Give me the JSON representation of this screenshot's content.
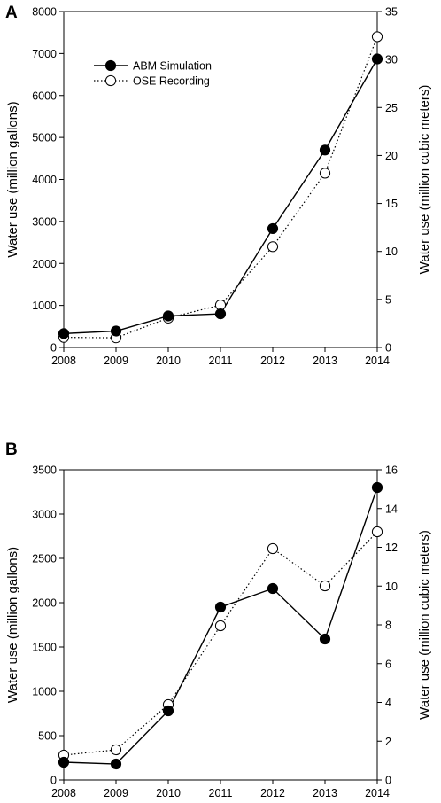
{
  "chart_data": [
    {
      "type": "line",
      "panel_label": "A",
      "x": [
        2008,
        2009,
        2010,
        2011,
        2012,
        2013,
        2014
      ],
      "xlim": [
        2008,
        2014
      ],
      "x_ticks": [
        "2008",
        "2009",
        "2010",
        "2011",
        "2012",
        "2013",
        "2014"
      ],
      "ylabel": "Water use (million gallons)",
      "ylim": [
        0,
        8000
      ],
      "y_ticks": [
        "0",
        "1000",
        "2000",
        "3000",
        "4000",
        "5000",
        "6000",
        "7000",
        "8000"
      ],
      "y2label": "Water use (million cubic meters)",
      "y2lim": [
        0,
        35
      ],
      "y2_ticks": [
        "0",
        "5",
        "10",
        "15",
        "20",
        "25",
        "30",
        "35"
      ],
      "legend": "upper-left",
      "grid": false,
      "series": [
        {
          "name": "ABM Simulation",
          "marker": "filled-circle",
          "line": "solid",
          "color": "#000000",
          "values": [
            330,
            390,
            750,
            800,
            2830,
            4700,
            6870
          ]
        },
        {
          "name": "OSE Recording",
          "marker": "open-circle",
          "line": "dotted",
          "color": "#000000",
          "values": [
            240,
            230,
            700,
            1010,
            2400,
            4150,
            7400
          ]
        }
      ]
    },
    {
      "type": "line",
      "panel_label": "B",
      "x": [
        2008,
        2009,
        2010,
        2011,
        2012,
        2013,
        2014
      ],
      "xlim": [
        2008,
        2014
      ],
      "x_ticks": [
        "2008",
        "2009",
        "2010",
        "2011",
        "2012",
        "2013",
        "2014"
      ],
      "ylabel": "Water use (million gallons)",
      "ylim": [
        0,
        3500
      ],
      "y_ticks": [
        "0",
        "500",
        "1000",
        "1500",
        "2000",
        "2500",
        "3000",
        "3500"
      ],
      "y2label": "Water use (million cubic meters)",
      "y2lim": [
        0,
        16
      ],
      "y2_ticks": [
        "0",
        "2",
        "4",
        "6",
        "8",
        "10",
        "12",
        "14",
        "16"
      ],
      "grid": false,
      "series": [
        {
          "marker": "filled-circle",
          "line": "solid",
          "color": "#000000",
          "values": [
            200,
            180,
            780,
            1950,
            2160,
            1590,
            3300
          ]
        },
        {
          "marker": "open-circle",
          "line": "dotted",
          "color": "#000000",
          "values": [
            280,
            340,
            850,
            1740,
            2610,
            2190,
            2800
          ]
        }
      ]
    }
  ]
}
